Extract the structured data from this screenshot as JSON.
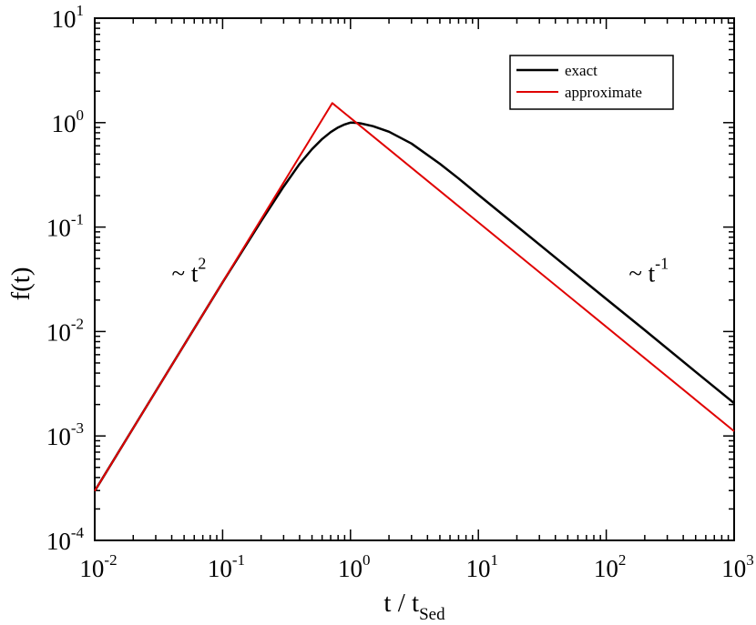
{
  "chart_data": {
    "type": "line",
    "xscale": "log",
    "yscale": "log",
    "xlim": [
      0.01,
      1000
    ],
    "ylim": [
      0.0001,
      10
    ],
    "xlabel": {
      "main": "t / t",
      "sub": "Sed"
    },
    "ylabel": "f(t)",
    "x_ticks": [
      {
        "base": "10",
        "exp": "-2",
        "value": 0.01
      },
      {
        "base": "10",
        "exp": "-1",
        "value": 0.1
      },
      {
        "base": "10",
        "exp": "0",
        "value": 1
      },
      {
        "base": "10",
        "exp": "1",
        "value": 10
      },
      {
        "base": "10",
        "exp": "2",
        "value": 100
      },
      {
        "base": "10",
        "exp": "3",
        "value": 1000
      }
    ],
    "y_ticks": [
      {
        "base": "10",
        "exp": "-4",
        "value": 0.0001
      },
      {
        "base": "10",
        "exp": "-3",
        "value": 0.001
      },
      {
        "base": "10",
        "exp": "-2",
        "value": 0.01
      },
      {
        "base": "10",
        "exp": "-1",
        "value": 0.1
      },
      {
        "base": "10",
        "exp": "0",
        "value": 1
      },
      {
        "base": "10",
        "exp": "1",
        "value": 10
      }
    ],
    "grid": false,
    "legend": {
      "placement": "top-right"
    },
    "annotations": [
      {
        "base": "~ t",
        "exp": "2",
        "x": 0.04,
        "y": 0.03
      },
      {
        "base": "~ t",
        "exp": "-1",
        "x": 150,
        "y": 0.03
      }
    ],
    "series": [
      {
        "name": "exact",
        "color": "#000000",
        "x": [
          0.01,
          0.02,
          0.05,
          0.1,
          0.2,
          0.3,
          0.4,
          0.5,
          0.6,
          0.7,
          0.8,
          0.9,
          1.0,
          1.1,
          1.2,
          1.5,
          2,
          3,
          5,
          7,
          10,
          20,
          50,
          100,
          200,
          500,
          1000
        ],
        "y": [
          0.000297,
          0.00119,
          0.00741,
          0.0296,
          0.114,
          0.244,
          0.402,
          0.557,
          0.697,
          0.812,
          0.899,
          0.96,
          1.0,
          0.995,
          0.984,
          0.924,
          0.819,
          0.63,
          0.404,
          0.292,
          0.204,
          0.102,
          0.0409,
          0.0205,
          0.0103,
          0.00411,
          0.00206
        ]
      },
      {
        "name": "approximate",
        "color": "#e00000",
        "x": [
          0.01,
          0.72,
          1000
        ],
        "y": [
          0.000297,
          1.54,
          0.00111
        ]
      }
    ]
  }
}
